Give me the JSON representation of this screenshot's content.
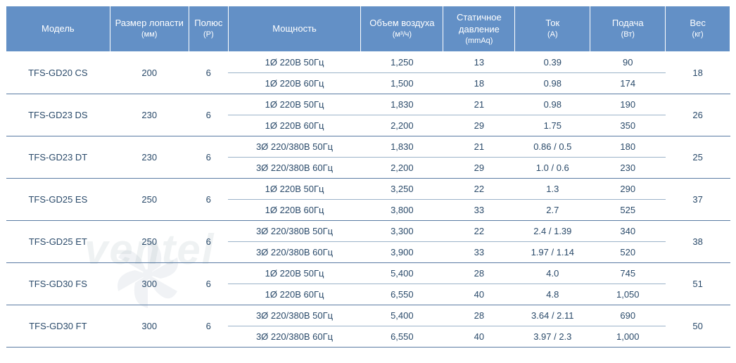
{
  "headers": {
    "model": "Модель",
    "blade": "Размер лопасти",
    "blade_unit": "(мм)",
    "pole": "Полюс",
    "pole_unit": "(P)",
    "power": "Мощность",
    "air": "Объем воздуха",
    "air_unit": "(м³/ч)",
    "pressure": "Статичное давление",
    "pressure_unit": "(mmAq)",
    "current": "Ток",
    "current_unit": "(A)",
    "supply": "Подача",
    "supply_unit": "(Вт)",
    "weight": "Вес",
    "weight_unit": "(кг)"
  },
  "colors": {
    "header_bg": "#6390c6",
    "header_text": "#ffffff",
    "cell_text": "#2a4a6a",
    "border_light": "#9bb3c9",
    "border_group": "#5a7ba3"
  },
  "watermark": "ventel",
  "models": [
    {
      "name": "TFS-GD20 CS",
      "blade": "200",
      "pole": "6",
      "weight": "18",
      "rows": [
        {
          "power": "1Ø 220B 50Гц",
          "air": "1,250",
          "press": "13",
          "curr": "0.39",
          "sup": "90"
        },
        {
          "power": "1Ø 220B 60Гц",
          "air": "1,500",
          "press": "18",
          "curr": "0.98",
          "sup": "174"
        }
      ]
    },
    {
      "name": "TFS-GD23 DS",
      "blade": "230",
      "pole": "6",
      "weight": "26",
      "rows": [
        {
          "power": "1Ø 220B 50Гц",
          "air": "1,830",
          "press": "21",
          "curr": "0.98",
          "sup": "190"
        },
        {
          "power": "1Ø 220B 60Гц",
          "air": "2,200",
          "press": "29",
          "curr": "1.75",
          "sup": "350"
        }
      ]
    },
    {
      "name": "TFS-GD23 DT",
      "blade": "230",
      "pole": "6",
      "weight": "25",
      "rows": [
        {
          "power": "3Ø 220/380B 50Гц",
          "air": "1,830",
          "press": "21",
          "curr": "0.86 / 0.5",
          "sup": "180"
        },
        {
          "power": "3Ø 220/380B 60Гц",
          "air": "2,200",
          "press": "29",
          "curr": "1.0 / 0.6",
          "sup": "230"
        }
      ]
    },
    {
      "name": "TFS-GD25 ES",
      "blade": "250",
      "pole": "6",
      "weight": "37",
      "rows": [
        {
          "power": "1Ø 220B 50Гц",
          "air": "3,250",
          "press": "22",
          "curr": "1.3",
          "sup": "290"
        },
        {
          "power": "1Ø 220B 60Гц",
          "air": "3,800",
          "press": "33",
          "curr": "2.7",
          "sup": "525"
        }
      ]
    },
    {
      "name": "TFS-GD25 ET",
      "blade": "250",
      "pole": "6",
      "weight": "38",
      "rows": [
        {
          "power": "3Ø 220/380B 50Гц",
          "air": "3,300",
          "press": "22",
          "curr": "2.4 / 1.39",
          "sup": "340"
        },
        {
          "power": "3Ø 220/380B 60Гц",
          "air": "3,900",
          "press": "33",
          "curr": "1.97 / 1.14",
          "sup": "520"
        }
      ]
    },
    {
      "name": "TFS-GD30 FS",
      "blade": "300",
      "pole": "6",
      "weight": "51",
      "rows": [
        {
          "power": "1Ø 220B 50Гц",
          "air": "5,400",
          "press": "28",
          "curr": "4.0",
          "sup": "745"
        },
        {
          "power": "1Ø 220B 60Гц",
          "air": "6,550",
          "press": "40",
          "curr": "4.8",
          "sup": "1,050"
        }
      ]
    },
    {
      "name": "TFS-GD30 FT",
      "blade": "300",
      "pole": "6",
      "weight": "50",
      "rows": [
        {
          "power": "3Ø 220/380B 50Гц",
          "air": "5,400",
          "press": "28",
          "curr": "3.64 / 2.11",
          "sup": "690"
        },
        {
          "power": "3Ø 220/380B 60Гц",
          "air": "6,550",
          "press": "40",
          "curr": "3.97 / 2.3",
          "sup": "1,000"
        }
      ]
    }
  ]
}
